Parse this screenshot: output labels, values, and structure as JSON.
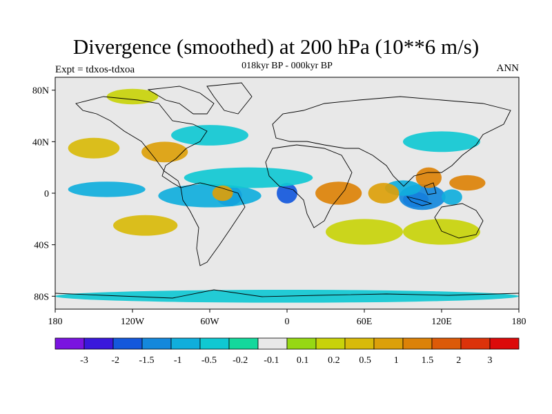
{
  "title": "Divergence (smoothed) at 200 hPa (10**6 m/s)",
  "left_subtitle": "Expt = tdxos-tdxoa",
  "center_subtitle": "018kyr BP - 000kyr BP",
  "right_subtitle": "ANN",
  "map": {
    "projection": "cylindrical-equidistant",
    "lon_range": [
      -180,
      180
    ],
    "lat_range": [
      -90,
      90
    ],
    "lon_ticks": [
      {
        "value": -180,
        "label": "180"
      },
      {
        "value": -120,
        "label": "120W"
      },
      {
        "value": -60,
        "label": "60W"
      },
      {
        "value": 0,
        "label": "0"
      },
      {
        "value": 60,
        "label": "60E"
      },
      {
        "value": 120,
        "label": "120E"
      },
      {
        "value": 180,
        "label": "180"
      }
    ],
    "lat_ticks": [
      {
        "value": 80,
        "label": "80N"
      },
      {
        "value": 40,
        "label": "40N"
      },
      {
        "value": 0,
        "label": "0"
      },
      {
        "value": -40,
        "label": "40S"
      },
      {
        "value": -80,
        "label": "80S"
      }
    ],
    "background_color": "#e8e8e8"
  },
  "colorbar": {
    "colors": [
      "#7a14e0",
      "#3a18dc",
      "#1458dc",
      "#1488dc",
      "#10aedc",
      "#10c8d2",
      "#14d89c",
      "#e8e8e8",
      "#96d814",
      "#c8d20a",
      "#d8ba0a",
      "#dca00a",
      "#dc8208",
      "#dc5a08",
      "#dc320a",
      "#dc0a0a"
    ],
    "labels": [
      "-3",
      "-2",
      "-1.5",
      "-1",
      "-0.5",
      "-0.2",
      "-0.1",
      "0.1",
      "0.2",
      "0.5",
      "1",
      "1.5",
      "2",
      "3"
    ]
  },
  "field_blobs": [
    {
      "lon": -45,
      "lat": -2,
      "r_lon": 10,
      "r_lat": 8,
      "level": -3
    },
    {
      "lon": -60,
      "lat": -2,
      "r_lon": 40,
      "r_lat": 9,
      "level": -1
    },
    {
      "lon": -140,
      "lat": 3,
      "r_lon": 30,
      "r_lat": 6,
      "level": -1
    },
    {
      "lon": 0,
      "lat": 0,
      "r_lon": 8,
      "r_lat": 8,
      "level": -2
    },
    {
      "lon": -30,
      "lat": 12,
      "r_lon": 50,
      "r_lat": 8,
      "level": -0.5
    },
    {
      "lon": 100,
      "lat": -5,
      "r_lon": 10,
      "r_lat": 6,
      "level": -3
    },
    {
      "lon": 105,
      "lat": -3,
      "r_lon": 18,
      "r_lat": 10,
      "level": -1.5
    },
    {
      "lon": 90,
      "lat": 4,
      "r_lon": 14,
      "r_lat": 6,
      "level": -1
    },
    {
      "lon": 128,
      "lat": -3,
      "r_lon": 8,
      "r_lat": 6,
      "level": -1
    },
    {
      "lon": 40,
      "lat": 0,
      "r_lon": 18,
      "r_lat": 9,
      "level": 1.5
    },
    {
      "lon": 75,
      "lat": 0,
      "r_lon": 12,
      "r_lat": 8,
      "level": 1
    },
    {
      "lon": 110,
      "lat": 12,
      "r_lon": 10,
      "r_lat": 8,
      "level": 1.5
    },
    {
      "lon": 140,
      "lat": 8,
      "r_lon": 14,
      "r_lat": 6,
      "level": 1.5
    },
    {
      "lon": -95,
      "lat": 32,
      "r_lon": 18,
      "r_lat": 8,
      "level": 1
    },
    {
      "lon": -150,
      "lat": 35,
      "r_lon": 20,
      "r_lat": 8,
      "level": 0.5
    },
    {
      "lon": -50,
      "lat": 0,
      "r_lon": 8,
      "r_lat": 6,
      "level": 1
    },
    {
      "lon": -110,
      "lat": -25,
      "r_lon": 25,
      "r_lat": 8,
      "level": 0.5
    },
    {
      "lon": 60,
      "lat": -30,
      "r_lon": 30,
      "r_lat": 10,
      "level": 0.2
    },
    {
      "lon": 120,
      "lat": -30,
      "r_lon": 30,
      "r_lat": 10,
      "level": 0.2
    },
    {
      "lon": -60,
      "lat": 45,
      "r_lon": 30,
      "r_lat": 8,
      "level": -0.5
    },
    {
      "lon": 120,
      "lat": 40,
      "r_lon": 30,
      "r_lat": 8,
      "level": -0.5
    },
    {
      "lon": -120,
      "lat": 75,
      "r_lon": 20,
      "r_lat": 6,
      "level": 0.2
    },
    {
      "lon": 0,
      "lat": -80,
      "r_lon": 180,
      "r_lat": 5,
      "level": -0.5
    }
  ]
}
